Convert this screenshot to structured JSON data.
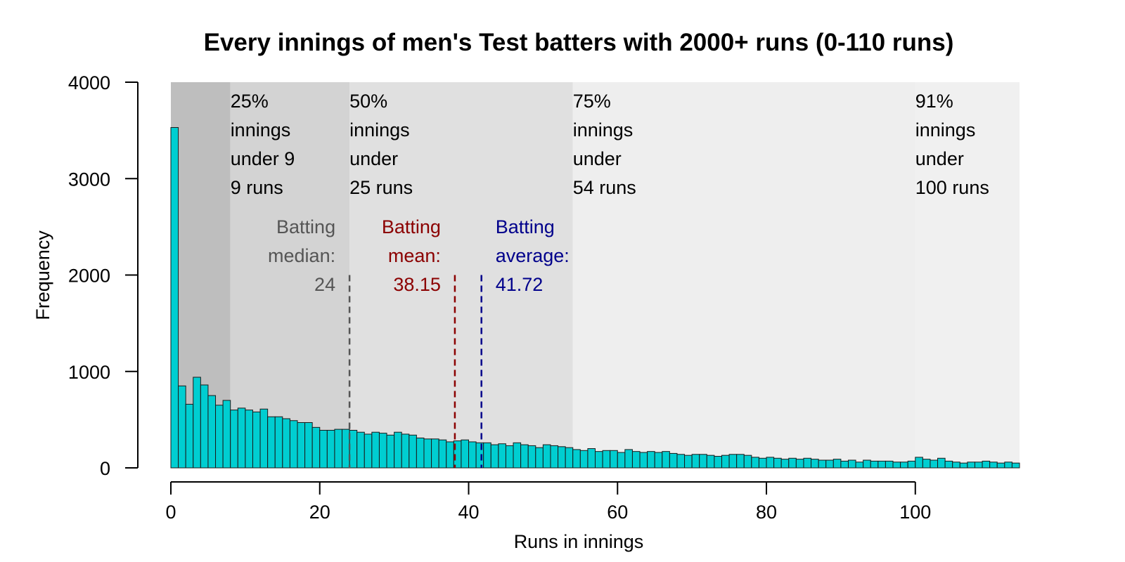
{
  "chart_data": {
    "type": "bar",
    "title": "Every innings of men's Test batters with 2000+ runs (0-110 runs)",
    "xlabel": "Runs in innings",
    "ylabel": "Frequency",
    "xlim": [
      0,
      114
    ],
    "ylim": [
      0,
      4000
    ],
    "x_ticks": [
      0,
      20,
      40,
      60,
      80,
      100
    ],
    "y_ticks": [
      0,
      1000,
      2000,
      3000,
      4000
    ],
    "bin_width": 1,
    "bar_color": "#00CED1",
    "grid": false,
    "bins_start": [
      0,
      1,
      2,
      3,
      4,
      5,
      6,
      7,
      8,
      9,
      10,
      11,
      12,
      13,
      14,
      15,
      16,
      17,
      18,
      19,
      20,
      21,
      22,
      23,
      24,
      25,
      26,
      27,
      28,
      29,
      30,
      31,
      32,
      33,
      34,
      35,
      36,
      37,
      38,
      39,
      40,
      41,
      42,
      43,
      44,
      45,
      46,
      47,
      48,
      49,
      50,
      51,
      52,
      53,
      54,
      55,
      56,
      57,
      58,
      59,
      60,
      61,
      62,
      63,
      64,
      65,
      66,
      67,
      68,
      69,
      70,
      71,
      72,
      73,
      74,
      75,
      76,
      77,
      78,
      79,
      80,
      81,
      82,
      83,
      84,
      85,
      86,
      87,
      88,
      89,
      90,
      91,
      92,
      93,
      94,
      95,
      96,
      97,
      98,
      99,
      100,
      101,
      102,
      103,
      104,
      105,
      106,
      107,
      108,
      109,
      110,
      111,
      112,
      113
    ],
    "values": [
      3530,
      850,
      660,
      940,
      860,
      750,
      650,
      700,
      600,
      620,
      600,
      580,
      610,
      530,
      530,
      510,
      490,
      470,
      470,
      420,
      390,
      390,
      400,
      400,
      390,
      370,
      350,
      370,
      360,
      340,
      370,
      350,
      340,
      310,
      300,
      300,
      290,
      270,
      280,
      290,
      270,
      260,
      260,
      240,
      250,
      230,
      260,
      240,
      230,
      210,
      240,
      230,
      220,
      210,
      190,
      180,
      200,
      170,
      180,
      180,
      160,
      190,
      170,
      160,
      170,
      160,
      170,
      150,
      140,
      130,
      140,
      140,
      130,
      120,
      130,
      140,
      140,
      130,
      110,
      100,
      110,
      100,
      90,
      100,
      90,
      100,
      90,
      80,
      80,
      90,
      70,
      80,
      60,
      80,
      70,
      70,
      70,
      60,
      60,
      70,
      110,
      90,
      80,
      100,
      70,
      60,
      50,
      60,
      60,
      70,
      60,
      50,
      60,
      50
    ],
    "quantiles": [
      {
        "x": 8,
        "label": [
          "25%",
          "innings",
          "under 9",
          "9 runs"
        ],
        "fill": "#bebebe"
      },
      {
        "x": 24,
        "label": [
          "50%",
          "innings",
          "under",
          "25 runs"
        ],
        "fill": "#d3d3d3"
      },
      {
        "x": 54,
        "label": [
          "75%",
          "innings",
          "under",
          "54 runs"
        ],
        "fill": "#e0e0e0"
      },
      {
        "x": 100,
        "label": [
          "91%",
          "innings",
          "under",
          "100 runs"
        ],
        "fill": "#eeeeee"
      }
    ],
    "reference_lines": [
      {
        "x": 24,
        "color": "#555555",
        "label": [
          "Batting",
          "median:",
          "24"
        ],
        "align": "end"
      },
      {
        "x": 38.15,
        "color": "#8B0000",
        "label": [
          "Batting",
          "mean:",
          "38.15"
        ],
        "align": "end"
      },
      {
        "x": 41.72,
        "color": "#00008B",
        "label": [
          "Batting",
          "average:",
          "41.72"
        ],
        "align": "start"
      }
    ]
  }
}
